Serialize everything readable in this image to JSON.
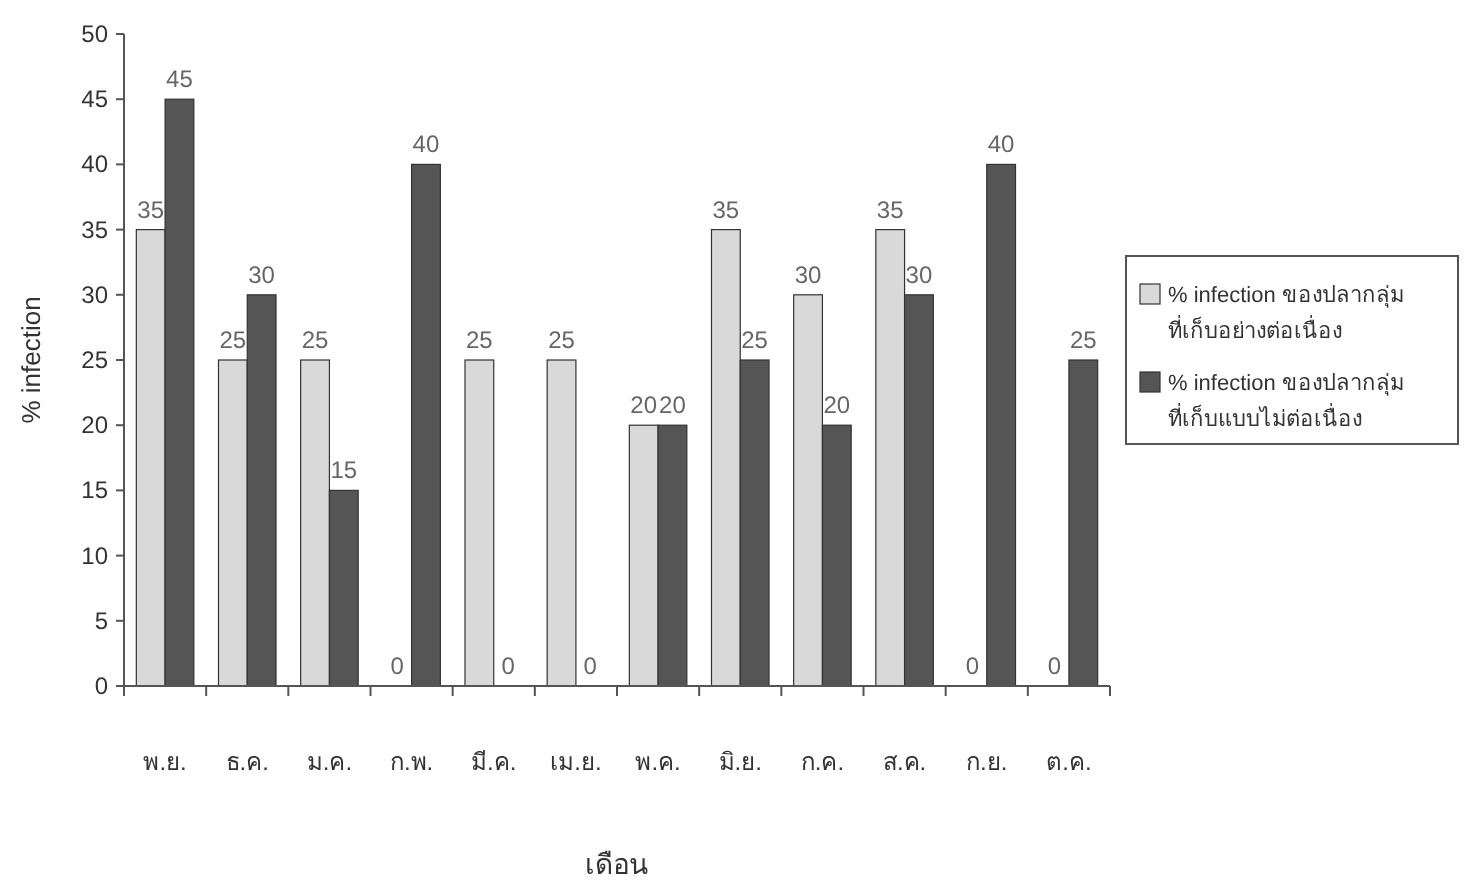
{
  "chart_data": {
    "type": "bar",
    "xlabel": "เดือน",
    "ylabel": "% infection",
    "categories": [
      "พ.ย.",
      "ธ.ค.",
      "ม.ค.",
      "ก.พ.",
      "มี.ค.",
      "เม.ย.",
      "พ.ค.",
      "มิ.ย.",
      "ก.ค.",
      "ส.ค.",
      "ก.ย.",
      "ต.ค."
    ],
    "series": [
      {
        "name": "% infection ของปลากลุ่ม ที่เก็บอย่างต่อเนื่อง",
        "color": "#d9d9d9",
        "values": [
          35,
          25,
          25,
          0,
          25,
          25,
          20,
          35,
          30,
          35,
          0,
          0
        ]
      },
      {
        "name": "% infection ของปลากลุ่ม ที่เก็บแบบไม่ต่อเนื่อง",
        "color": "#555555",
        "values": [
          45,
          30,
          15,
          40,
          0,
          0,
          20,
          25,
          20,
          30,
          40,
          25
        ]
      }
    ],
    "ylim": [
      0,
      50
    ],
    "yticks": [
      0,
      5,
      10,
      15,
      20,
      25,
      30,
      35,
      40,
      45,
      50
    ],
    "grid": false,
    "legend": "right",
    "data_labels": true
  }
}
